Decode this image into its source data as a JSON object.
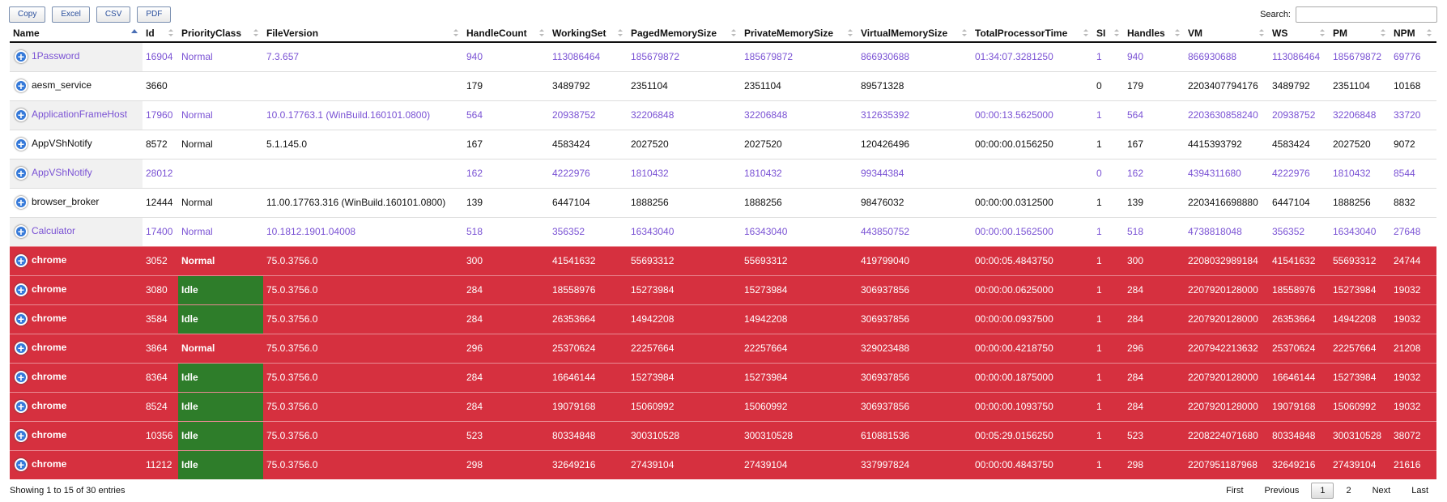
{
  "buttons": [
    "Copy",
    "Excel",
    "CSV",
    "PDF"
  ],
  "search": {
    "label": "Search:"
  },
  "table": {
    "columns": [
      "Name",
      "Id",
      "PriorityClass",
      "FileVersion",
      "HandleCount",
      "WorkingSet",
      "PagedMemorySize",
      "PrivateMemorySize",
      "VirtualMemorySize",
      "TotalProcessorTime",
      "SI",
      "Handles",
      "VM",
      "WS",
      "PM",
      "NPM"
    ],
    "rows": [
      [
        "1Password",
        16904,
        "Normal",
        "7.3.657",
        940,
        113086464,
        185679872,
        185679872,
        866930688,
        "01:34:07.3281250",
        1,
        940,
        866930688,
        113086464,
        185679872,
        69776
      ],
      [
        "aesm_service",
        3660,
        null,
        null,
        179,
        3489792,
        2351104,
        2351104,
        89571328,
        null,
        0,
        179,
        2203407794176,
        3489792,
        2351104,
        10168
      ],
      [
        "ApplicationFrameHost",
        17960,
        "Normal",
        "10.0.17763.1 (WinBuild.160101.0800)",
        564,
        20938752,
        32206848,
        32206848,
        312635392,
        "00:00:13.5625000",
        1,
        564,
        2203630858240,
        20938752,
        32206848,
        33720
      ],
      [
        "AppVShNotify",
        8572,
        "Normal",
        "5.1.145.0",
        167,
        4583424,
        2027520,
        2027520,
        120426496,
        "00:00:00.0156250",
        1,
        167,
        4415393792,
        4583424,
        2027520,
        9072
      ],
      [
        "AppVShNotify",
        28012,
        null,
        null,
        162,
        4222976,
        1810432,
        1810432,
        99344384,
        null,
        0,
        162,
        4394311680,
        4222976,
        1810432,
        8544
      ],
      [
        "browser_broker",
        12444,
        "Normal",
        "11.00.17763.316 (WinBuild.160101.0800)",
        139,
        6447104,
        1888256,
        1888256,
        98476032,
        "00:00:00.0312500",
        1,
        139,
        2203416698880,
        6447104,
        1888256,
        8832
      ],
      [
        "Calculator",
        17400,
        "Normal",
        "10.1812.1901.04008",
        518,
        356352,
        16343040,
        16343040,
        443850752,
        "00:00:00.1562500",
        1,
        518,
        4738818048,
        356352,
        16343040,
        27648
      ],
      [
        "chrome",
        3052,
        "Normal",
        "75.0.3756.0",
        300,
        41541632,
        55693312,
        55693312,
        419799040,
        "00:00:05.4843750",
        1,
        300,
        2208032989184,
        41541632,
        55693312,
        24744
      ],
      [
        "chrome",
        3080,
        "Idle",
        "75.0.3756.0",
        284,
        18558976,
        15273984,
        15273984,
        306937856,
        "00:00:00.0625000",
        1,
        284,
        2207920128000,
        18558976,
        15273984,
        19032
      ],
      [
        "chrome",
        3584,
        "Idle",
        "75.0.3756.0",
        284,
        26353664,
        14942208,
        14942208,
        306937856,
        "00:00:00.0937500",
        1,
        284,
        2207920128000,
        26353664,
        14942208,
        19032
      ],
      [
        "chrome",
        3864,
        "Normal",
        "75.0.3756.0",
        296,
        25370624,
        22257664,
        22257664,
        329023488,
        "00:00:00.4218750",
        1,
        296,
        2207942213632,
        25370624,
        22257664,
        21208
      ],
      [
        "chrome",
        8364,
        "Idle",
        "75.0.3756.0",
        284,
        16646144,
        15273984,
        15273984,
        306937856,
        "00:00:00.1875000",
        1,
        284,
        2207920128000,
        16646144,
        15273984,
        19032
      ],
      [
        "chrome",
        8524,
        "Idle",
        "75.0.3756.0",
        284,
        19079168,
        15060992,
        15060992,
        306937856,
        "00:00:00.1093750",
        1,
        284,
        2207920128000,
        19079168,
        15060992,
        19032
      ],
      [
        "chrome",
        10356,
        "Idle",
        "75.0.3756.0",
        523,
        80334848,
        300310528,
        300310528,
        610881536,
        "00:05:29.0156250",
        1,
        523,
        2208224071680,
        80334848,
        300310528,
        38072
      ],
      [
        "chrome",
        11212,
        "Idle",
        "75.0.3756.0",
        298,
        32649216,
        27439104,
        27439104,
        337997824,
        "00:00:00.4843750",
        1,
        298,
        2207951187968,
        32649216,
        27439104,
        21616
      ]
    ]
  },
  "info": "Showing 1 to 15 of 30 entries",
  "pagination": [
    "First",
    "Previous",
    "1",
    "2",
    "Next",
    "Last"
  ]
}
